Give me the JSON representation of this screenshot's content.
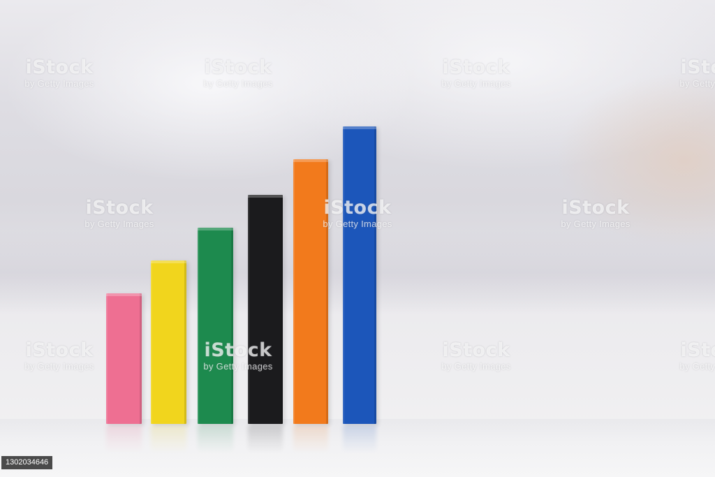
{
  "image": {
    "subject": "wooden-block-bar-arrangement",
    "blocks": [
      {
        "color": "#ee6f92",
        "relative_height": 0.44
      },
      {
        "color": "#f1d51d",
        "relative_height": 0.55
      },
      {
        "color": "#1d8a4e",
        "relative_height": 0.66
      },
      {
        "color": "#1b1b1d",
        "relative_height": 0.77
      },
      {
        "color": "#f27a1c",
        "relative_height": 0.89
      },
      {
        "color": "#1c56ba",
        "relative_height": 1.0
      }
    ]
  },
  "watermark": {
    "logo": "iStock",
    "credit": "by Getty Images"
  },
  "photo_id": "1302034646"
}
